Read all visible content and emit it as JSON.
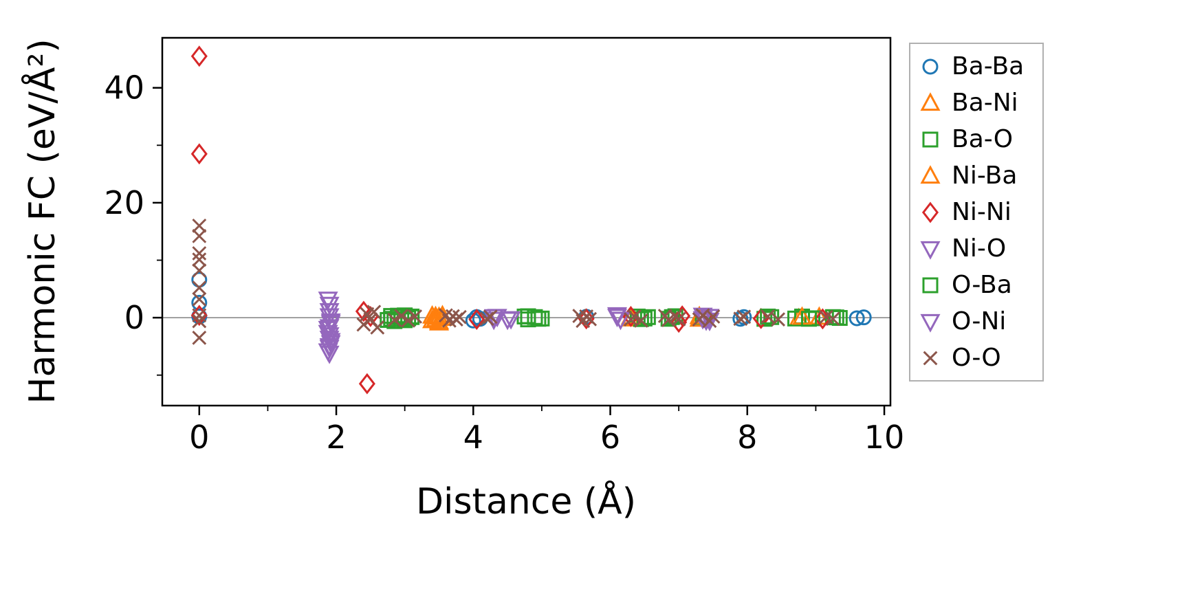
{
  "chart_data": {
    "type": "scatter",
    "title": "",
    "xlabel": "Distance (Å)",
    "ylabel": "Harmonic FC (eV/Å²)",
    "xlim": [
      -0.54,
      10.09
    ],
    "ylim": [
      -15.3,
      48.7
    ],
    "xticks": [
      0,
      2,
      4,
      6,
      8,
      10
    ],
    "yticks": [
      0,
      20,
      40
    ],
    "xminor": [
      1,
      3,
      5,
      7,
      9
    ],
    "yminor": [
      -10,
      10,
      30
    ],
    "grid": false,
    "zero_line": true,
    "zero_line_color": "#808080",
    "legend_position": "outside-right",
    "series": [
      {
        "name": "Ba-Ba",
        "marker": "circle",
        "color": "#1f77b4",
        "points": [
          [
            0,
            6.6
          ],
          [
            0,
            2.6
          ],
          [
            0,
            0.2
          ],
          [
            4.0,
            -0.5
          ],
          [
            4.05,
            0.1
          ],
          [
            4.1,
            -0.2
          ],
          [
            5.65,
            0.15
          ],
          [
            6.9,
            -0.1
          ],
          [
            7.9,
            -0.2
          ],
          [
            7.95,
            0.1
          ],
          [
            9.6,
            -0.1
          ],
          [
            9.7,
            0.05
          ]
        ]
      },
      {
        "name": "Ba-Ni",
        "marker": "triangle-up",
        "color": "#ff7f0e",
        "points": [
          [
            3.4,
            0.3
          ],
          [
            3.45,
            -0.3
          ],
          [
            3.5,
            0.1
          ],
          [
            3.5,
            -0.7
          ],
          [
            3.55,
            -0.1
          ],
          [
            6.3,
            -0.2
          ],
          [
            7.3,
            -0.25
          ],
          [
            8.75,
            -0.15
          ],
          [
            9.05,
            0.1
          ]
        ]
      },
      {
        "name": "Ba-O",
        "marker": "square",
        "color": "#2ca02c",
        "points": [
          [
            2.75,
            -0.4
          ],
          [
            2.8,
            0.3
          ],
          [
            2.85,
            -0.6
          ],
          [
            2.9,
            0.15
          ],
          [
            2.95,
            -0.25
          ],
          [
            3.0,
            0.4
          ],
          [
            3.05,
            -0.1
          ],
          [
            3.1,
            0.2
          ],
          [
            4.75,
            0.2
          ],
          [
            4.8,
            -0.3
          ],
          [
            4.9,
            0.1
          ],
          [
            5.0,
            -0.15
          ],
          [
            6.4,
            0.2
          ],
          [
            6.45,
            -0.25
          ],
          [
            6.55,
            0.1
          ],
          [
            6.85,
            -0.2
          ],
          [
            6.95,
            0.25
          ],
          [
            7.35,
            0.15
          ],
          [
            8.25,
            -0.2
          ],
          [
            8.35,
            0.1
          ],
          [
            8.7,
            -0.15
          ],
          [
            8.8,
            0.2
          ],
          [
            8.95,
            -0.1
          ],
          [
            9.25,
            0.1
          ],
          [
            9.35,
            -0.05
          ]
        ]
      },
      {
        "name": "Ni-Ba",
        "marker": "triangle-up",
        "color": "#ff7f0e",
        "points": [
          [
            3.4,
            -0.5
          ],
          [
            3.45,
            0.2
          ],
          [
            3.5,
            -0.9
          ],
          [
            3.55,
            0.35
          ],
          [
            6.3,
            0.15
          ],
          [
            7.3,
            0.2
          ],
          [
            8.8,
            0.1
          ]
        ]
      },
      {
        "name": "Ni-Ni",
        "marker": "diamond",
        "color": "#d62728",
        "points": [
          [
            0,
            45.5
          ],
          [
            0,
            28.5
          ],
          [
            0,
            0.4
          ],
          [
            2.4,
            1.1
          ],
          [
            2.45,
            -11.5
          ],
          [
            2.5,
            0.2
          ],
          [
            4.05,
            -0.3
          ],
          [
            5.65,
            -0.2
          ],
          [
            6.3,
            0.2
          ],
          [
            7.0,
            -0.8
          ],
          [
            7.05,
            0.3
          ],
          [
            7.4,
            -0.3
          ],
          [
            8.2,
            -0.15
          ],
          [
            9.1,
            -0.2
          ]
        ]
      },
      {
        "name": "Ni-O",
        "marker": "triangle-down",
        "color": "#9467bd",
        "points": [
          [
            1.88,
            3.2
          ],
          [
            1.9,
            2.3
          ],
          [
            1.9,
            1.2
          ],
          [
            1.92,
            -0.6
          ],
          [
            1.9,
            -1.6
          ],
          [
            1.88,
            -2.6
          ],
          [
            1.9,
            -3.6
          ],
          [
            1.92,
            -4.4
          ],
          [
            1.9,
            -5.2
          ],
          [
            1.9,
            -6.2
          ],
          [
            4.3,
            -0.3
          ],
          [
            4.35,
            0.2
          ],
          [
            4.55,
            -0.2
          ],
          [
            6.1,
            0.5
          ],
          [
            6.15,
            -0.3
          ],
          [
            7.35,
            0.4
          ],
          [
            7.4,
            -0.45
          ],
          [
            7.45,
            0.2
          ]
        ]
      },
      {
        "name": "O-Ba",
        "marker": "square",
        "color": "#2ca02c",
        "points": [
          [
            2.8,
            -0.2
          ],
          [
            2.9,
            0.35
          ],
          [
            3.0,
            -0.45
          ],
          [
            3.1,
            0.1
          ],
          [
            4.8,
            0.25
          ],
          [
            4.95,
            -0.2
          ],
          [
            6.5,
            -0.15
          ],
          [
            6.9,
            0.1
          ],
          [
            8.3,
            0.2
          ],
          [
            8.9,
            -0.2
          ],
          [
            9.3,
            0.05
          ]
        ]
      },
      {
        "name": "O-Ni",
        "marker": "triangle-down",
        "color": "#9467bd",
        "points": [
          [
            1.9,
            0.3
          ],
          [
            1.92,
            -0.9
          ],
          [
            1.88,
            -1.9
          ],
          [
            1.9,
            -3.0
          ],
          [
            1.92,
            -4.0
          ],
          [
            1.9,
            -4.9
          ],
          [
            1.88,
            -5.8
          ],
          [
            4.3,
            0.15
          ],
          [
            4.5,
            -0.3
          ],
          [
            6.1,
            0.2
          ],
          [
            7.35,
            -0.2
          ],
          [
            7.45,
            -0.5
          ]
        ]
      },
      {
        "name": "O-O",
        "marker": "x",
        "color": "#8c564b",
        "points": [
          [
            0,
            16.0
          ],
          [
            0,
            14.2
          ],
          [
            0,
            11.2
          ],
          [
            0,
            10.1
          ],
          [
            0,
            8.2
          ],
          [
            0,
            5.2
          ],
          [
            0,
            3.2
          ],
          [
            0,
            0.4
          ],
          [
            0,
            -0.6
          ],
          [
            0,
            -3.5
          ],
          [
            2.4,
            -1.2
          ],
          [
            2.45,
            0.6
          ],
          [
            2.5,
            -0.3
          ],
          [
            2.55,
            1.0
          ],
          [
            2.6,
            -1.7
          ],
          [
            2.85,
            -0.4
          ],
          [
            2.95,
            0.3
          ],
          [
            3.05,
            -0.5
          ],
          [
            3.15,
            0.2
          ],
          [
            3.6,
            0.4
          ],
          [
            3.65,
            -0.5
          ],
          [
            3.7,
            0.25
          ],
          [
            3.75,
            -0.3
          ],
          [
            3.8,
            0.1
          ],
          [
            4.2,
            -0.2
          ],
          [
            4.25,
            0.15
          ],
          [
            5.55,
            0.3
          ],
          [
            5.6,
            -0.55
          ],
          [
            5.65,
            0.2
          ],
          [
            5.7,
            -0.25
          ],
          [
            6.3,
            -0.3
          ],
          [
            6.35,
            0.2
          ],
          [
            6.45,
            -0.5
          ],
          [
            6.8,
            0.3
          ],
          [
            6.85,
            -0.4
          ],
          [
            6.95,
            0.2
          ],
          [
            7.0,
            -0.25
          ],
          [
            7.3,
            -0.3
          ],
          [
            7.35,
            0.4
          ],
          [
            7.45,
            -0.55
          ],
          [
            7.5,
            0.2
          ],
          [
            7.9,
            -0.2
          ],
          [
            7.95,
            0.15
          ],
          [
            8.3,
            0.2
          ],
          [
            8.45,
            -0.3
          ],
          [
            9.15,
            0.1
          ],
          [
            9.25,
            -0.2
          ]
        ]
      }
    ]
  }
}
